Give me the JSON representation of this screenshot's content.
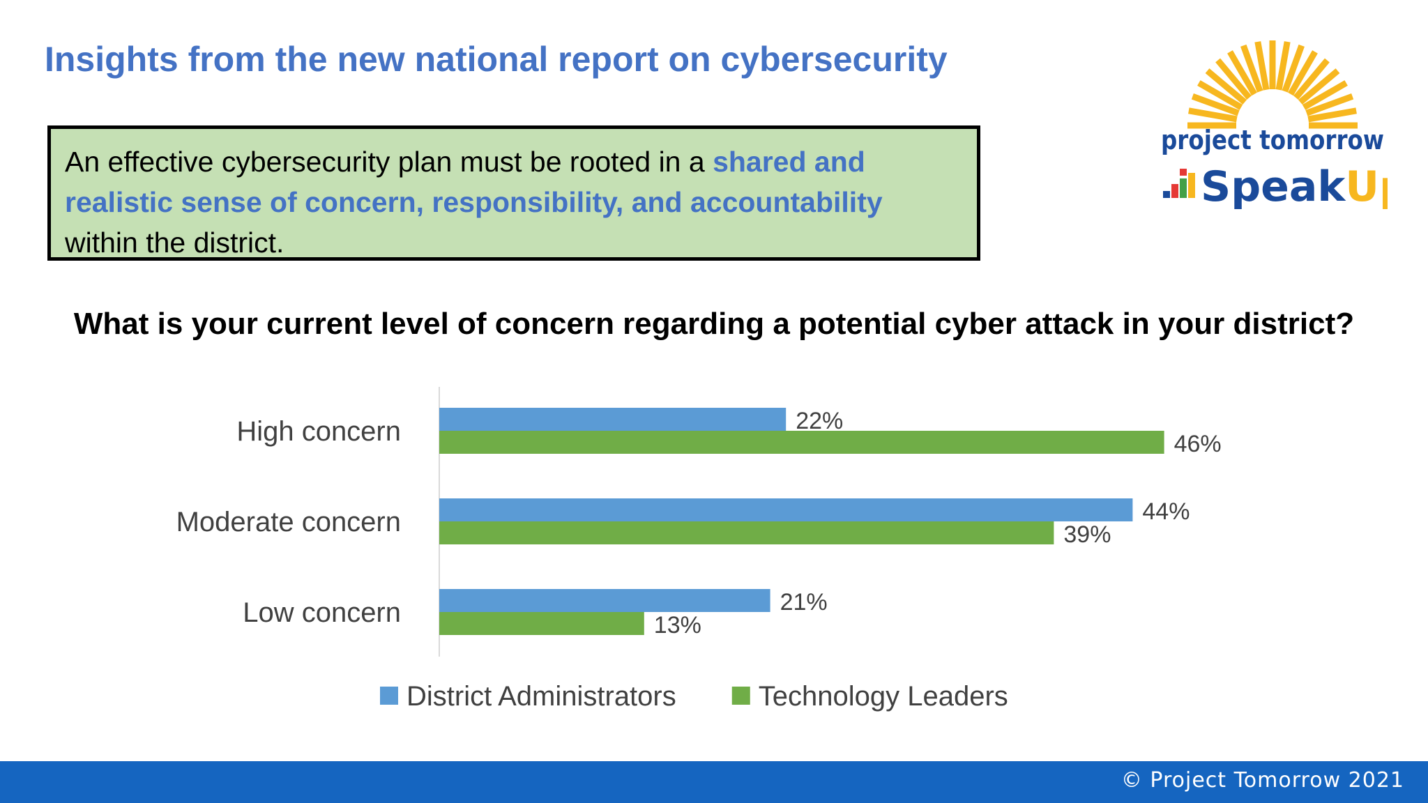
{
  "slide": {
    "title": "Insights from the new national report on cybersecurity",
    "callout": {
      "part1": "An effective cybersecurity plan must be rooted in a ",
      "highlight": "shared and realistic sense of concern, responsibility, and accountability",
      "part2": " within the district."
    },
    "logo": {
      "line1": "project tomorrow",
      "line2_a": "Speak",
      "line2_b": "Up",
      "sun_color": "#f7b71f",
      "text_color": "#1a4a9a"
    },
    "footer": {
      "copyright": "© Project Tomorrow 2021",
      "bar_color": "#1565c0"
    }
  },
  "chart_data": {
    "type": "bar",
    "orientation": "horizontal",
    "title": "What is your current level of concern regarding a potential cyber attack in your district?",
    "categories": [
      "High concern",
      "Moderate concern",
      "Low concern"
    ],
    "series": [
      {
        "name": "District Administrators",
        "values": [
          22,
          44,
          21
        ],
        "labels": [
          "22%",
          "44%",
          "21%"
        ],
        "color": "#5b9bd5"
      },
      {
        "name": "Technology Leaders",
        "values": [
          46,
          39,
          13
        ],
        "labels": [
          "46%",
          "39%",
          "13%"
        ],
        "color": "#70ad47"
      }
    ],
    "xlim": [
      0,
      50
    ],
    "grid": false,
    "legend": "bottom"
  }
}
